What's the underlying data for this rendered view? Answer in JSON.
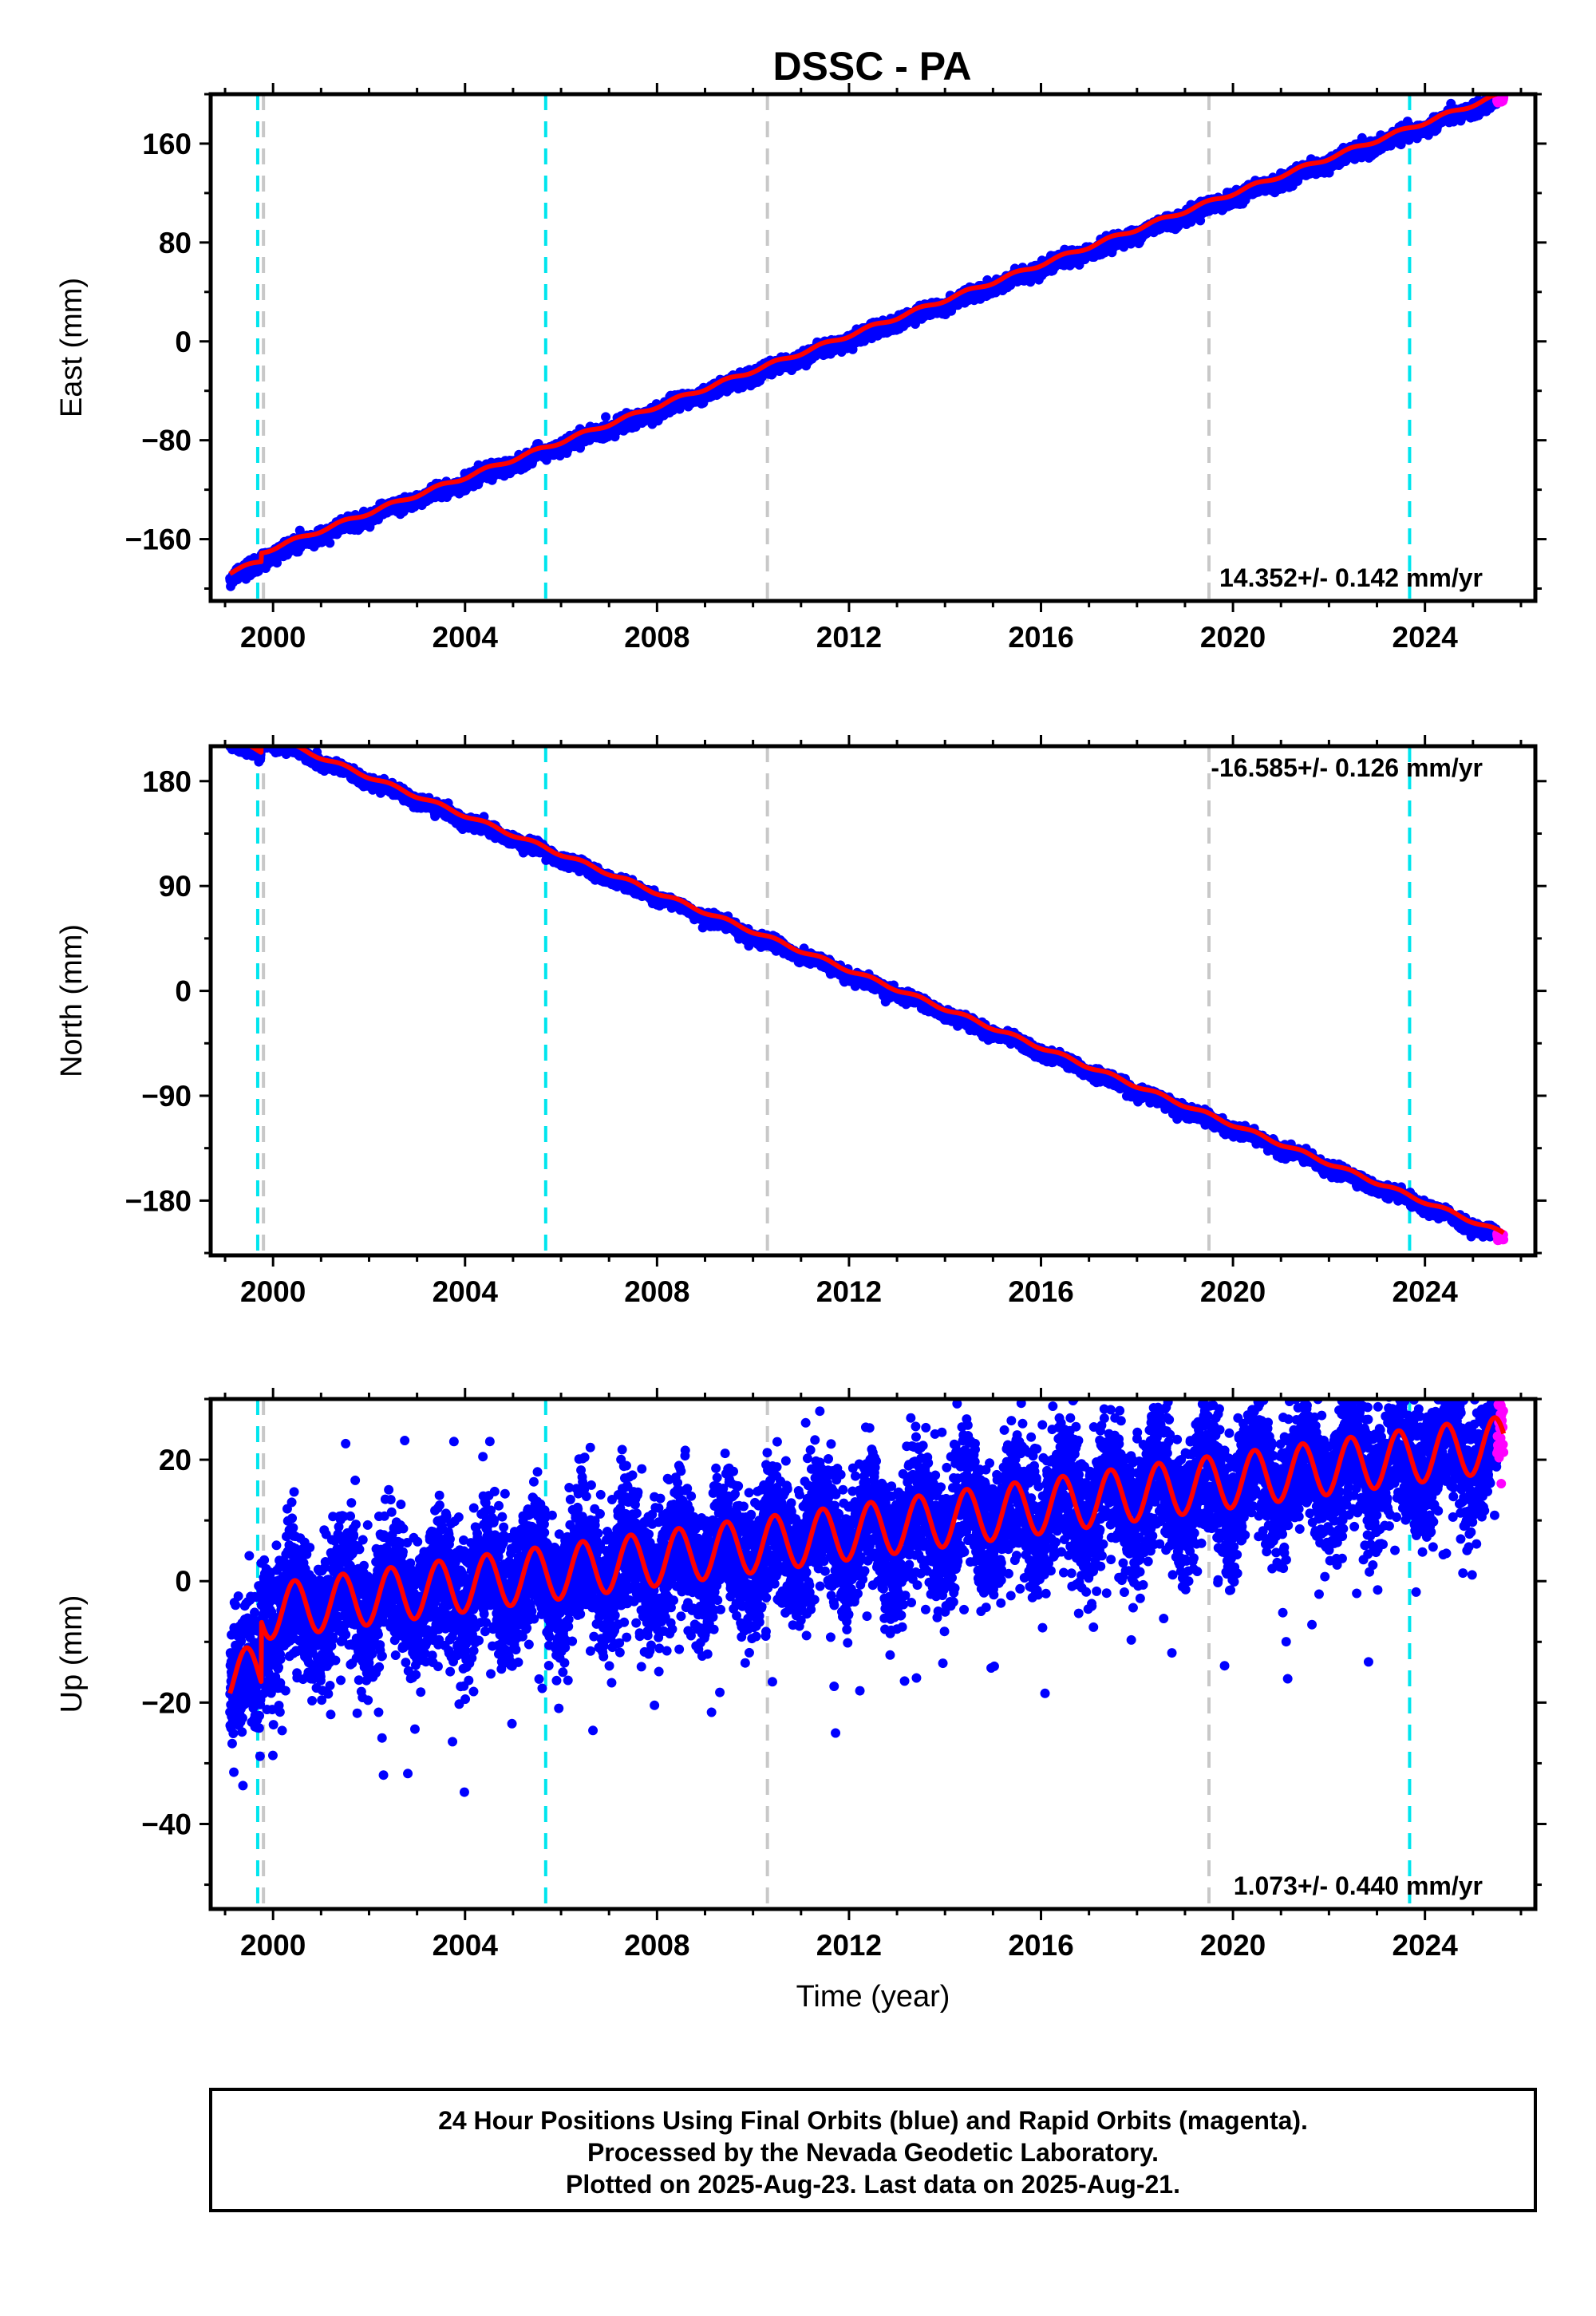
{
  "title": "DSSC - PA",
  "caption": {
    "line1": "24 Hour Positions Using Final Orbits (blue) and Rapid Orbits (magenta).",
    "line2": "Processed by the Nevada Geodetic Laboratory.",
    "line3": "Plotted on 2025-Aug-23. Last data on 2025-Aug-21."
  },
  "colors": {
    "final_orbits": "#0000ff",
    "rapid_orbits": "#ff00ff",
    "model_fit": "#ff0000",
    "equipment_change": "#00e5ee",
    "other_event": "#c8c8c8"
  },
  "chart_data": [
    {
      "type": "scatter",
      "component": "east",
      "ylabel": "East (mm)",
      "xlabel": "",
      "xlim": [
        1998.7,
        2026.3
      ],
      "ylim": [
        -210,
        200
      ],
      "x_ticks": [
        "2000",
        "2004",
        "2008",
        "2012",
        "2016",
        "2020",
        "2024"
      ],
      "y_ticks": [
        "160",
        "80",
        "0",
        "−80",
        "−160"
      ],
      "y_tick_values": [
        160,
        80,
        0,
        -80,
        -160
      ],
      "rate_label": "14.352+/- 0.142 mm/yr",
      "rate_position": "bottom-right",
      "trend": {
        "rate": 14.352,
        "value_at_2012": -2,
        "start": 1999.1,
        "end": 2025.64
      },
      "offsets": [
        {
          "year": 1999.75,
          "dy": 7
        }
      ],
      "seasonal_amp": 1.5,
      "scatter_sd": 2.8,
      "vertical_lines": {
        "cyan": [
          1999.68,
          2005.68,
          2023.68
        ],
        "gray": [
          1999.8,
          2010.3,
          2019.5
        ]
      }
    },
    {
      "type": "scatter",
      "component": "north",
      "ylabel": "North (mm)",
      "xlabel": "",
      "xlim": [
        1998.7,
        2026.3
      ],
      "ylim": [
        -227,
        210
      ],
      "x_ticks": [
        "2000",
        "2004",
        "2008",
        "2012",
        "2016",
        "2020",
        "2024"
      ],
      "y_ticks": [
        "180",
        "90",
        "0",
        "−90",
        "−180"
      ],
      "y_tick_values": [
        180,
        90,
        0,
        -90,
        -180
      ],
      "rate_label": "-16.585+/- 0.126 mm/yr",
      "rate_position": "top-right",
      "trend": {
        "rate": -16.585,
        "value_at_2012": 2,
        "start": 1999.1,
        "end": 2025.64
      },
      "offsets": [
        {
          "year": 1999.75,
          "dy": 16
        }
      ],
      "seasonal_amp": 1.5,
      "scatter_sd": 2.5,
      "vertical_lines": {
        "cyan": [
          1999.68,
          2005.68,
          2023.68
        ],
        "gray": [
          1999.8,
          2010.3,
          2019.5
        ]
      }
    },
    {
      "type": "scatter",
      "component": "up",
      "ylabel": "Up (mm)",
      "xlabel": "Time (year)",
      "xlim": [
        1998.7,
        2026.3
      ],
      "ylim": [
        -54,
        30
      ],
      "x_ticks": [
        "2000",
        "2004",
        "2008",
        "2012",
        "2016",
        "2020",
        "2024"
      ],
      "y_ticks": [
        "20",
        "0",
        "−20",
        "−40"
      ],
      "y_tick_values": [
        20,
        0,
        -20,
        -40
      ],
      "rate_label": "1.073+/- 0.440 mm/yr",
      "rate_position": "bottom-right",
      "trend": {
        "rate": 1.073,
        "value_at_2012": -2,
        "start": 1999.1,
        "end": 2025.64
      },
      "offsets": [
        {
          "year": 1999.75,
          "dy": 10
        }
      ],
      "seasonal_amp": 4.5,
      "scatter_sd": 5.5,
      "vertical_lines": {
        "cyan": [
          1999.68,
          2005.68,
          2023.68
        ],
        "gray": [
          1999.8,
          2010.3,
          2019.5
        ]
      }
    }
  ]
}
